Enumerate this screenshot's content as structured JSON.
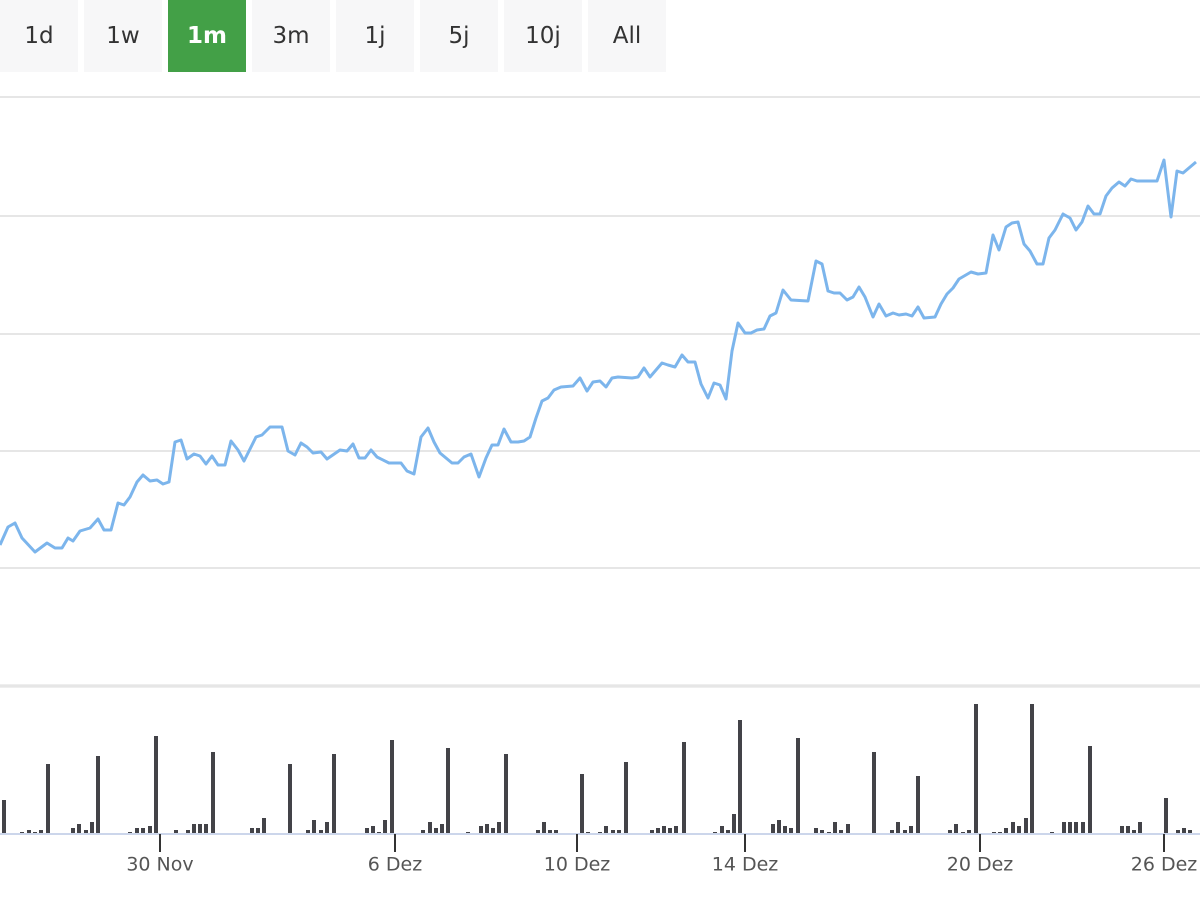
{
  "range_buttons": {
    "labels": [
      "1d",
      "1w",
      "1m",
      "3m",
      "1j",
      "5j",
      "10j",
      "All"
    ],
    "selected": "1m"
  },
  "chart_data": [
    {
      "type": "line",
      "color": "#7cb5ec",
      "grid": true,
      "xlim": [
        0,
        1200
      ],
      "ylim": [
        0,
        589
      ],
      "yticks": [
        0,
        118,
        235,
        352,
        470,
        589
      ],
      "x": [
        0,
        8,
        15,
        22,
        35,
        47,
        55,
        62,
        68,
        73,
        80,
        90,
        98,
        104,
        111,
        118,
        124,
        130,
        137,
        143,
        150,
        157,
        163,
        169,
        175,
        181,
        187,
        194,
        200,
        206,
        212,
        218,
        225,
        231,
        238,
        244,
        256,
        262,
        270,
        282,
        288,
        295,
        301,
        307,
        313,
        321,
        327,
        340,
        347,
        353,
        359,
        365,
        371,
        377,
        389,
        401,
        407,
        414,
        421,
        428,
        434,
        440,
        446,
        452,
        458,
        464,
        471,
        479,
        486,
        492,
        498,
        504,
        511,
        518,
        524,
        530,
        536,
        542,
        548,
        554,
        561,
        573,
        580,
        587,
        593,
        600,
        606,
        612,
        618,
        632,
        638,
        644,
        650,
        662,
        668,
        675,
        682,
        688,
        695,
        701,
        708,
        714,
        720,
        726,
        732,
        738,
        745,
        751,
        757,
        764,
        770,
        776,
        783,
        791,
        808,
        816,
        822,
        828,
        834,
        840,
        847,
        853,
        859,
        865,
        873,
        879,
        886,
        893,
        899,
        906,
        912,
        918,
        924,
        935,
        941,
        947,
        953,
        959,
        971,
        978,
        986,
        993,
        999,
        1006,
        1012,
        1018,
        1024,
        1030,
        1037,
        1043,
        1049,
        1055,
        1063,
        1070,
        1076,
        1082,
        1088,
        1094,
        1100,
        1106,
        1112,
        1119,
        1125,
        1131,
        1137,
        1157,
        1164,
        1171,
        1177,
        1183,
        1196
      ],
      "values": [
        141,
        159,
        163,
        148,
        134,
        143,
        138,
        138,
        148,
        145,
        155,
        158,
        167,
        156,
        156,
        183,
        181,
        189,
        204,
        211,
        205,
        206,
        202,
        204,
        244,
        246,
        227,
        232,
        230,
        222,
        230,
        221,
        221,
        245,
        236,
        225,
        249,
        251,
        259,
        259,
        235,
        231,
        243,
        239,
        233,
        234,
        227,
        236,
        235,
        242,
        228,
        228,
        236,
        229,
        223,
        223,
        215,
        212,
        249,
        258,
        244,
        233,
        228,
        223,
        223,
        229,
        232,
        209,
        228,
        241,
        241,
        257,
        244,
        244,
        245,
        249,
        268,
        285,
        288,
        296,
        299,
        300,
        308,
        295,
        304,
        305,
        299,
        308,
        309,
        308,
        309,
        318,
        309,
        323,
        321,
        319,
        331,
        324,
        324,
        302,
        288,
        303,
        301,
        287,
        335,
        363,
        353,
        353,
        356,
        357,
        370,
        373,
        396,
        386,
        385,
        425,
        422,
        395,
        393,
        393,
        386,
        389,
        399,
        389,
        369,
        382,
        370,
        373,
        371,
        372,
        370,
        379,
        368,
        369,
        382,
        392,
        398,
        407,
        414,
        412,
        413,
        451,
        436,
        459,
        463,
        464,
        442,
        435,
        422,
        422,
        448,
        456,
        472,
        468,
        456,
        464,
        480,
        472,
        472,
        490,
        498,
        504,
        500,
        507,
        505,
        505,
        526,
        469,
        515,
        513,
        524
      ]
    },
    {
      "type": "bar",
      "color": "#434348",
      "xlim": [
        0,
        1200
      ],
      "ylim": [
        0,
        146
      ],
      "xticks": [
        {
          "value": 160,
          "label": "30 Nov"
        },
        {
          "value": 395,
          "label": "6 Dez"
        },
        {
          "value": 577,
          "label": "10 Dez"
        },
        {
          "value": 745,
          "label": "14 Dez"
        },
        {
          "value": 980,
          "label": "20 Dez"
        },
        {
          "value": 1164,
          "label": "26 Dez"
        }
      ],
      "x": [
        4,
        22,
        29,
        35,
        41,
        48,
        73,
        79,
        86,
        92,
        98,
        130,
        137,
        143,
        150,
        156,
        176,
        188,
        194,
        200,
        206,
        213,
        252,
        258,
        264,
        290,
        308,
        314,
        321,
        327,
        334,
        367,
        373,
        379,
        385,
        392,
        423,
        430,
        436,
        442,
        448,
        468,
        481,
        487,
        493,
        499,
        506,
        538,
        544,
        550,
        556,
        582,
        588,
        600,
        606,
        613,
        619,
        626,
        652,
        658,
        664,
        670,
        676,
        684,
        715,
        722,
        728,
        734,
        740,
        773,
        779,
        785,
        791,
        798,
        816,
        822,
        829,
        835,
        841,
        848,
        874,
        892,
        898,
        905,
        911,
        918,
        950,
        956,
        963,
        969,
        976,
        994,
        1000,
        1006,
        1013,
        1019,
        1026,
        1032,
        1052,
        1064,
        1070,
        1076,
        1083,
        1090,
        1122,
        1128,
        1134,
        1140,
        1166,
        1178,
        1184,
        1190
      ],
      "values": [
        34,
        2,
        4,
        2,
        4,
        70,
        6,
        10,
        4,
        12,
        78,
        2,
        6,
        6,
        8,
        98,
        4,
        4,
        10,
        10,
        10,
        82,
        6,
        6,
        16,
        70,
        4,
        14,
        4,
        12,
        80,
        6,
        8,
        2,
        14,
        94,
        4,
        12,
        6,
        10,
        86,
        2,
        8,
        10,
        6,
        12,
        80,
        4,
        12,
        4,
        4,
        60,
        2,
        2,
        8,
        4,
        4,
        72,
        4,
        6,
        8,
        6,
        8,
        92,
        2,
        8,
        4,
        20,
        114,
        10,
        14,
        8,
        6,
        96,
        6,
        4,
        2,
        12,
        4,
        10,
        82,
        4,
        12,
        4,
        8,
        58,
        4,
        10,
        2,
        4,
        130,
        2,
        2,
        6,
        12,
        8,
        16,
        130,
        2,
        12,
        12,
        12,
        12,
        88,
        8,
        8,
        4,
        12,
        36,
        4,
        6,
        4
      ]
    }
  ]
}
